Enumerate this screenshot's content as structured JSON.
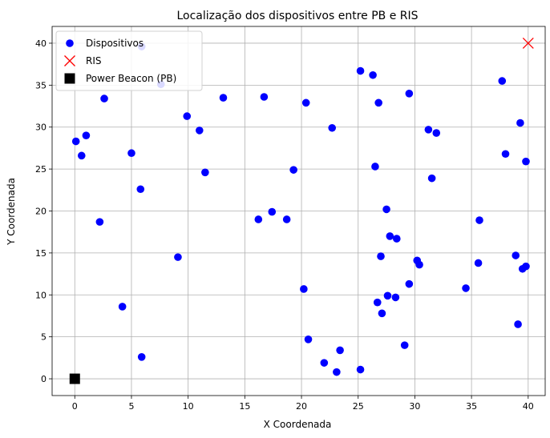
{
  "chart_data": {
    "type": "scatter",
    "title": "Localização dos dispositivos entre PB e RIS",
    "xlabel": "X Coordenada",
    "ylabel": "Y Coordenada",
    "xlim": [
      -2,
      41.5
    ],
    "ylim": [
      -2,
      42
    ],
    "xticks": [
      0,
      5,
      10,
      15,
      20,
      25,
      30,
      35,
      40
    ],
    "yticks": [
      0,
      5,
      10,
      15,
      20,
      25,
      30,
      35,
      40
    ],
    "grid": true,
    "legend_position": "top-left",
    "series": [
      {
        "name": "Dispositivos",
        "marker": "circle",
        "color": "#0000ff",
        "points": [
          [
            0.1,
            28.3
          ],
          [
            0.6,
            26.6
          ],
          [
            1.0,
            29.0
          ],
          [
            2.2,
            18.7
          ],
          [
            2.6,
            33.4
          ],
          [
            4.2,
            8.6
          ],
          [
            5.0,
            26.9
          ],
          [
            5.8,
            22.6
          ],
          [
            5.9,
            39.6
          ],
          [
            5.9,
            2.6
          ],
          [
            7.6,
            35.1
          ],
          [
            9.1,
            14.5
          ],
          [
            9.9,
            31.3
          ],
          [
            11.0,
            29.6
          ],
          [
            11.5,
            24.6
          ],
          [
            13.1,
            33.5
          ],
          [
            16.2,
            19.0
          ],
          [
            16.7,
            33.6
          ],
          [
            17.4,
            19.9
          ],
          [
            18.7,
            19.0
          ],
          [
            19.3,
            24.9
          ],
          [
            20.2,
            10.7
          ],
          [
            20.4,
            32.9
          ],
          [
            20.6,
            4.7
          ],
          [
            22.0,
            1.9
          ],
          [
            22.7,
            29.9
          ],
          [
            23.1,
            0.8
          ],
          [
            23.4,
            3.4
          ],
          [
            25.2,
            36.7
          ],
          [
            25.2,
            1.1
          ],
          [
            26.3,
            36.2
          ],
          [
            26.5,
            25.3
          ],
          [
            26.7,
            9.1
          ],
          [
            26.8,
            32.9
          ],
          [
            27.0,
            14.6
          ],
          [
            27.1,
            7.8
          ],
          [
            27.5,
            20.2
          ],
          [
            27.6,
            9.9
          ],
          [
            27.8,
            17.0
          ],
          [
            28.3,
            9.7
          ],
          [
            28.4,
            16.7
          ],
          [
            29.1,
            4.0
          ],
          [
            29.5,
            34.0
          ],
          [
            29.5,
            11.3
          ],
          [
            30.2,
            14.1
          ],
          [
            30.4,
            13.6
          ],
          [
            31.2,
            29.7
          ],
          [
            31.5,
            23.9
          ],
          [
            31.9,
            29.3
          ],
          [
            34.5,
            10.8
          ],
          [
            35.6,
            13.8
          ],
          [
            35.7,
            18.9
          ],
          [
            37.7,
            35.5
          ],
          [
            38.0,
            26.8
          ],
          [
            38.9,
            14.7
          ],
          [
            39.1,
            6.5
          ],
          [
            39.3,
            30.5
          ],
          [
            39.5,
            13.1
          ],
          [
            39.8,
            13.4
          ],
          [
            39.8,
            25.9
          ]
        ]
      },
      {
        "name": "RIS",
        "marker": "x",
        "color": "#ff0000",
        "points": [
          [
            40,
            40
          ]
        ]
      },
      {
        "name": "Power Beacon (PB)",
        "marker": "square",
        "color": "#000000",
        "points": [
          [
            0,
            0
          ]
        ]
      }
    ]
  }
}
